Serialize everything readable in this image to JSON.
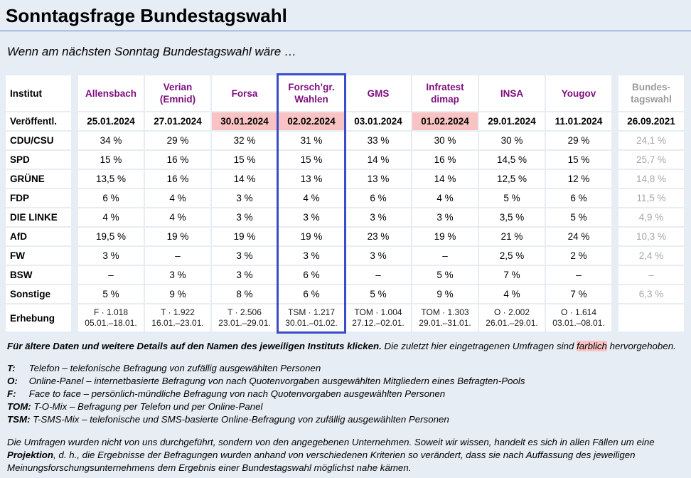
{
  "page": {
    "title": "Sonntagsfrage Bundestagswahl",
    "subtitle": "Wenn am nächsten Sonntag Bundestagswahl wäre …"
  },
  "colors": {
    "page_background": "#e7edf5",
    "cell_background": "#ffffff",
    "institute_link_purple": "#7d0c7d",
    "latest_poll_highlight_pink": "#fac3c3",
    "selected_column_border_blue": "#3a4cc8",
    "past_result_gray": "#a6a6a6",
    "title_rule_blue": "#4f82c2"
  },
  "table": {
    "corner_label": "Institut",
    "institutes": [
      "Allensbach",
      "Verian\n(Emnid)",
      "Forsa",
      "Forsch’gr.\nWahlen",
      "GMS",
      "Infratest\ndimap",
      "INSA",
      "Yougov",
      "Bundes-\ntagswahl"
    ],
    "published_row": {
      "label": "Veröffentl.",
      "dates": [
        "25.01.2024",
        "27.01.2024",
        "30.01.2024",
        "02.02.2024",
        "03.01.2024",
        "01.02.2024",
        "29.01.2024",
        "11.01.2024",
        "26.09.2021"
      ]
    },
    "party_rows": [
      {
        "party": "CDU/CSU",
        "values": [
          "34 %",
          "29 %",
          "32 %",
          "31 %",
          "33 %",
          "30 %",
          "30 %",
          "29 %",
          "24,1 %"
        ]
      },
      {
        "party": "SPD",
        "values": [
          "15 %",
          "16 %",
          "15 %",
          "15 %",
          "14 %",
          "16 %",
          "14,5 %",
          "15 %",
          "25,7 %"
        ]
      },
      {
        "party": "GRÜNE",
        "values": [
          "13,5 %",
          "16 %",
          "14 %",
          "13 %",
          "13 %",
          "14 %",
          "12,5 %",
          "12 %",
          "14,8 %"
        ]
      },
      {
        "party": "FDP",
        "values": [
          "6 %",
          "4 %",
          "3 %",
          "4 %",
          "6 %",
          "4 %",
          "5 %",
          "6 %",
          "11,5 %"
        ]
      },
      {
        "party": "DIE LINKE",
        "values": [
          "4 %",
          "4 %",
          "3 %",
          "3 %",
          "3 %",
          "3 %",
          "3,5 %",
          "5 %",
          "4,9 %"
        ]
      },
      {
        "party": "AfD",
        "values": [
          "19,5 %",
          "19 %",
          "19 %",
          "19 %",
          "23 %",
          "19 %",
          "21 %",
          "24 %",
          "10,3 %"
        ]
      },
      {
        "party": "FW",
        "values": [
          "3 %",
          "–",
          "3 %",
          "3 %",
          "3 %",
          "–",
          "2,5 %",
          "2 %",
          "2,4 %"
        ]
      },
      {
        "party": "BSW",
        "values": [
          "–",
          "3 %",
          "3 %",
          "6 %",
          "–",
          "5 %",
          "7 %",
          "–",
          "–"
        ]
      },
      {
        "party": "Sonstige",
        "values": [
          "5 %",
          "9 %",
          "8 %",
          "6 %",
          "5 %",
          "9 %",
          "4 %",
          "7 %",
          "6,3 %"
        ]
      }
    ],
    "survey_row": {
      "label": "Erhebung",
      "cells": [
        "F · 1.018\n05.01.–18.01.",
        "T · 1.922\n16.01.–23.01.",
        "T · 2.506\n23.01.–29.01.",
        "TSM · 1.217\n30.01.–01.02.",
        "TOM · 1.004\n27.12.–02.01.",
        "TOM · 1.303\n29.01.–31.01.",
        "O · 2.002\n26.01.–29.01.",
        "O · 1.614\n03.01.–08.01.",
        ""
      ]
    }
  },
  "footer": {
    "note_bold": "Für ältere Daten und weitere Details auf den Namen des jeweiligen Instituts klicken.",
    "note_rest_before": " Die zuletzt hier eingetragenen Umfragen sind ",
    "note_highlight_word": "farblich",
    "note_rest_after": " hervorgehoben.",
    "methods": [
      {
        "term": "T:",
        "definition": "Telefon – telefonische Befragung von zufällig ausgewählten Personen"
      },
      {
        "term": "O:",
        "definition": "Online-Panel – internetbasierte Befragung von nach Quotenvorgaben ausgewählten Mitgliedern eines Befragten-Pools"
      },
      {
        "term": "F:",
        "definition": "Face to face – persönlich-mündliche Befragung von nach Quotenvorgaben ausgewählten Personen"
      },
      {
        "term": "TOM:",
        "definition": "T-O-Mix – Befragung per Telefon und per Online-Panel"
      },
      {
        "term": "TSM:",
        "definition": "T-SMS-Mix – telefonische und SMS-basierte Online-Befragung von zufällig ausgewählten Personen"
      }
    ],
    "disclaimer_before": "Die Umfragen wurden nicht von uns durchgeführt, sondern von den angegebenen Unternehmen. Soweit wir wissen, handelt es sich in allen Fällen um eine ",
    "disclaimer_bold": "Projektion",
    "disclaimer_after": ", d. h., die Ergebnisse der Befragungen wurden anhand von verschiedenen Kriterien so verändert, dass sie nach Auffassung des jeweiligen Meinungsforschungsunternehmens dem Ergebnis einer Bundestagswahl möglichst nahe kämen."
  }
}
